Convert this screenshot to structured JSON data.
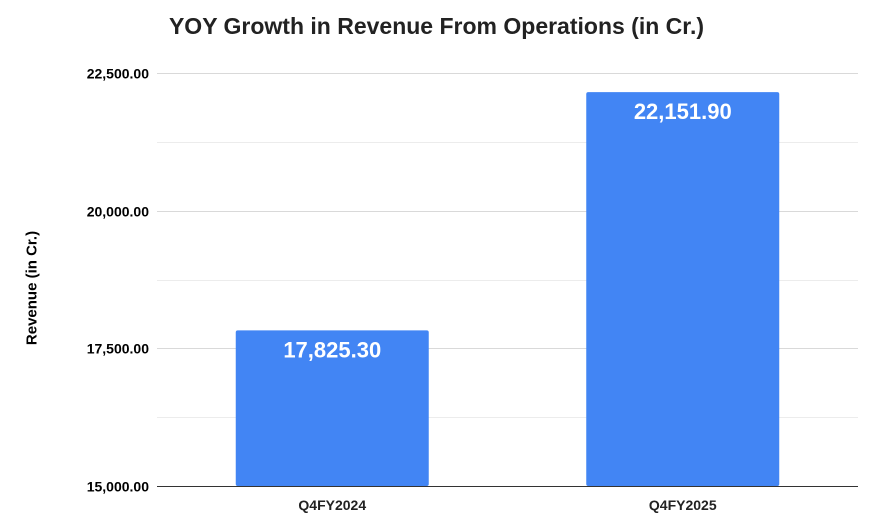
{
  "chart_data": {
    "type": "bar",
    "title": "YOY Growth in Revenue From Operations (in Cr.)",
    "xlabel": "",
    "ylabel": "Revenue (in Cr.)",
    "categories": [
      "Q4FY2024",
      "Q4FY2025"
    ],
    "values": [
      17825.3,
      22151.9
    ],
    "data_labels": [
      "17,825.30",
      "22,151.90"
    ],
    "ylim": [
      15000,
      22500
    ],
    "yticks": [
      15000,
      17500,
      20000,
      22500
    ],
    "ytick_labels": [
      "15,000.00",
      "17,500.00",
      "20,000.00",
      "22,500.00"
    ],
    "bar_color": "#4285f4",
    "grid": true,
    "legend": "none"
  }
}
